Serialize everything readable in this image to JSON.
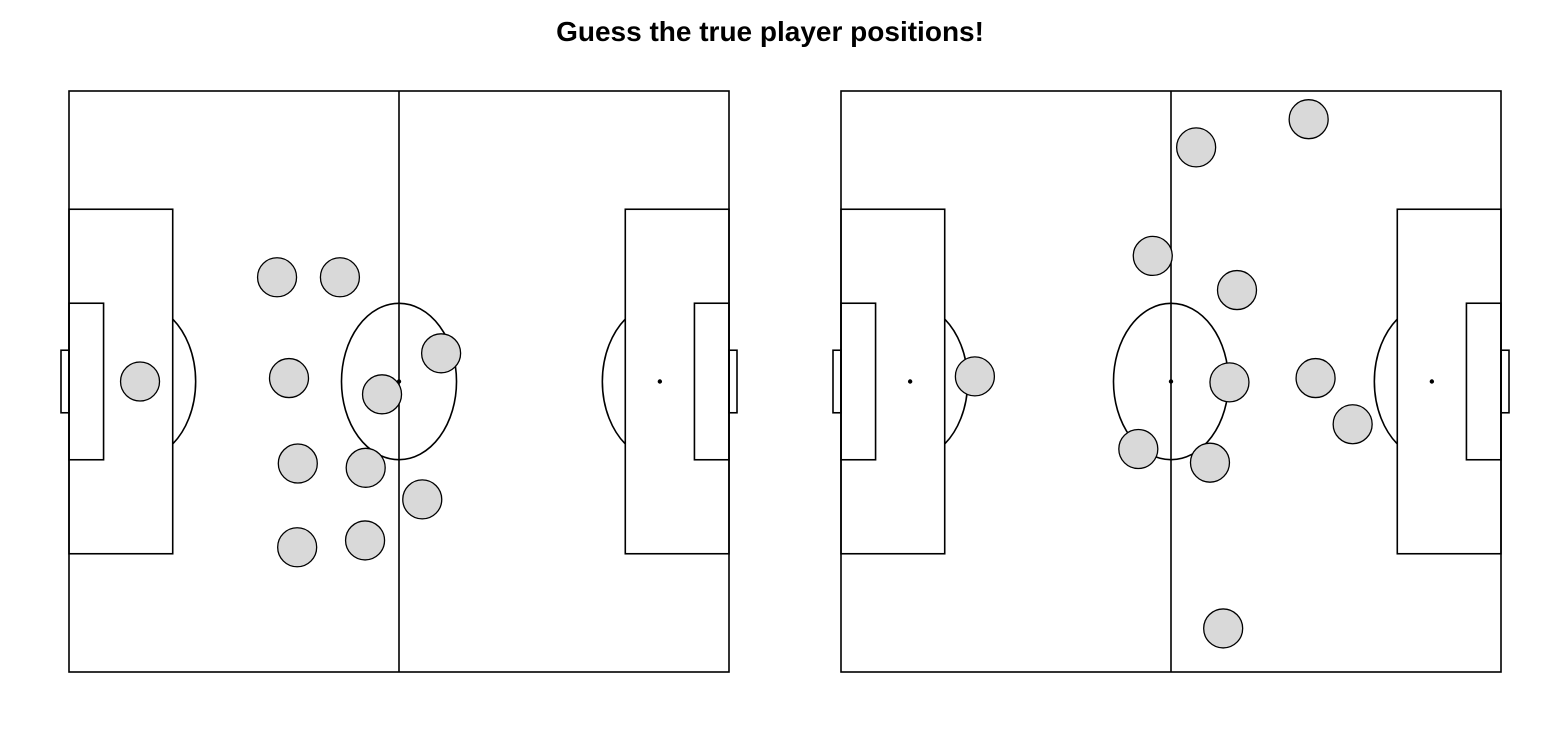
{
  "title": "Guess the true player positions!",
  "colors": {
    "player_fill": "#d9d9d9",
    "line": "#000000",
    "background": "#ffffff"
  },
  "pitch": {
    "length": 105,
    "width": 68
  },
  "chart_data": [
    {
      "type": "scatter",
      "title": "",
      "units": "metres",
      "xlim": [
        0,
        105
      ],
      "ylim": [
        0,
        68
      ],
      "players": [
        {
          "x": 11.3,
          "y": 34.0
        },
        {
          "x": 33.1,
          "y": 46.2
        },
        {
          "x": 43.1,
          "y": 46.2
        },
        {
          "x": 35.0,
          "y": 34.4
        },
        {
          "x": 59.2,
          "y": 37.3
        },
        {
          "x": 49.8,
          "y": 32.5
        },
        {
          "x": 36.4,
          "y": 24.4
        },
        {
          "x": 47.2,
          "y": 23.9
        },
        {
          "x": 56.2,
          "y": 20.2
        },
        {
          "x": 36.3,
          "y": 14.6
        },
        {
          "x": 47.1,
          "y": 15.4
        }
      ]
    },
    {
      "type": "scatter",
      "title": "",
      "units": "metres",
      "xlim": [
        0,
        105
      ],
      "ylim": [
        0,
        68
      ],
      "players": [
        {
          "x": 21.3,
          "y": 34.6
        },
        {
          "x": 74.4,
          "y": 64.7
        },
        {
          "x": 56.5,
          "y": 61.4
        },
        {
          "x": 49.6,
          "y": 48.7
        },
        {
          "x": 63.0,
          "y": 44.7
        },
        {
          "x": 61.8,
          "y": 33.9
        },
        {
          "x": 75.5,
          "y": 34.4
        },
        {
          "x": 81.4,
          "y": 29.0
        },
        {
          "x": 47.3,
          "y": 26.1
        },
        {
          "x": 58.7,
          "y": 24.5
        },
        {
          "x": 60.8,
          "y": 5.1
        }
      ]
    }
  ]
}
